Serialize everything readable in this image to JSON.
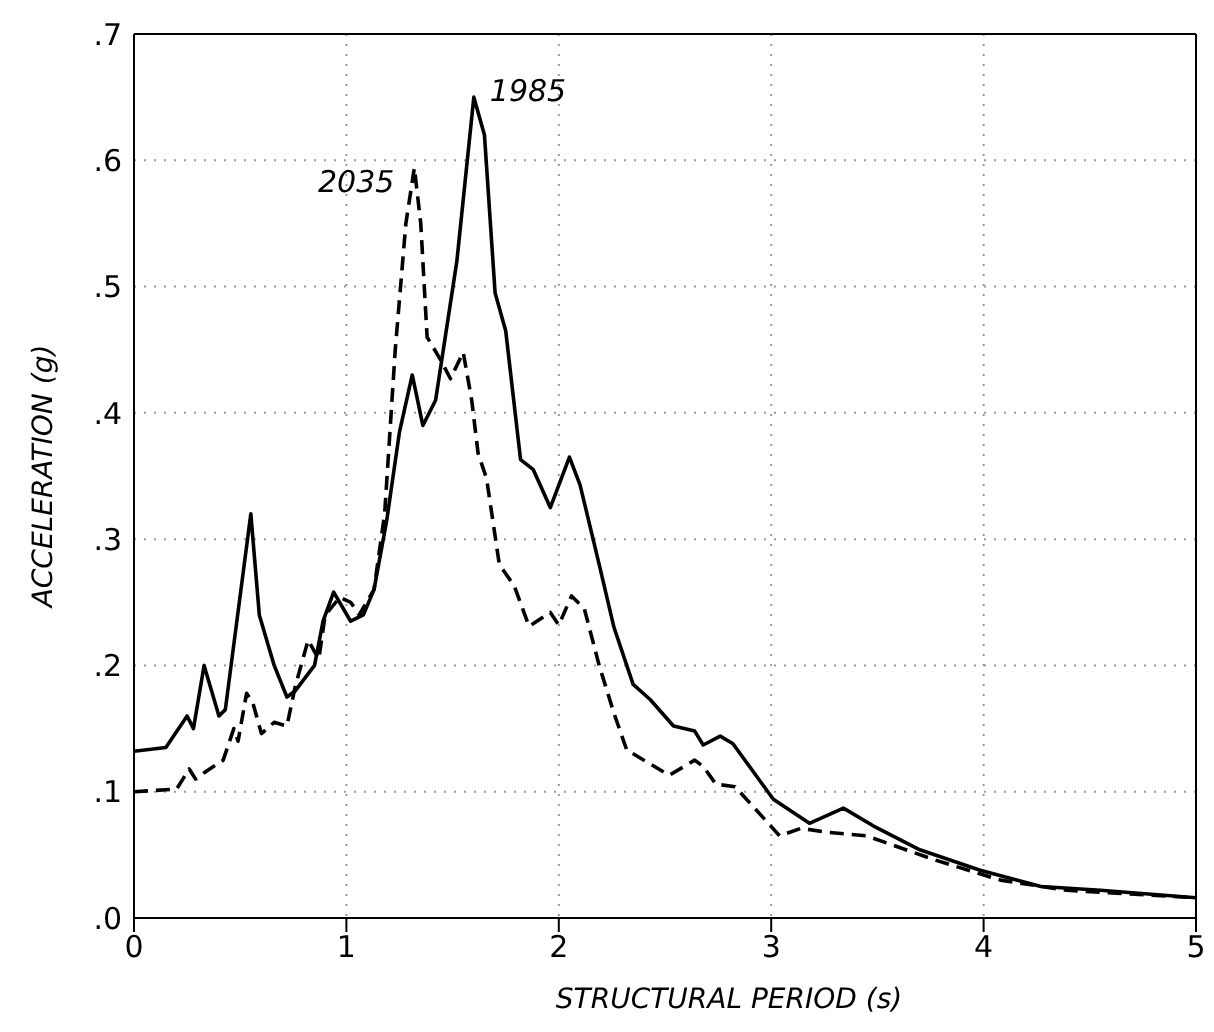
{
  "chart_data": {
    "type": "line",
    "xlabel": "STRUCTURAL PERIOD  (s)",
    "ylabel": "ACCELERATION  (g)",
    "xlim": [
      0,
      5
    ],
    "xticks": [
      0,
      1,
      2,
      3,
      4,
      5
    ],
    "ylim": [
      0,
      0.7
    ],
    "yticks": [
      {
        "value": 0,
        "label": ".0"
      },
      {
        "value": 0.1,
        "label": ".1"
      },
      {
        "value": 0.2,
        "label": ".2"
      },
      {
        "value": 0.3,
        "label": ".3"
      },
      {
        "value": 0.4,
        "label": ".4"
      },
      {
        "value": 0.5,
        "label": ".5"
      },
      {
        "value": 0.6,
        "label": ".6"
      },
      {
        "value": 0.7,
        "label": ".7"
      }
    ],
    "grid": true,
    "legend": false,
    "marker": "none",
    "series": [
      {
        "name": "1985",
        "color": "#000000",
        "line_style": "solid",
        "x": [
          0,
          0.15,
          0.25,
          0.28,
          0.33,
          0.4,
          0.43,
          0.55,
          0.59,
          0.66,
          0.72,
          0.76,
          0.85,
          0.89,
          0.94,
          1.02,
          1.08,
          1.13,
          1.19,
          1.25,
          1.31,
          1.36,
          1.42,
          1.52,
          1.6,
          1.65,
          1.7,
          1.75,
          1.82,
          1.88,
          1.96,
          2.05,
          2.1,
          2.19,
          2.26,
          2.35,
          2.43,
          2.54,
          2.64,
          2.68,
          2.76,
          2.82,
          3.01,
          3.18,
          3.34,
          3.48,
          3.7,
          3.98,
          4.27,
          4.55,
          5
        ],
        "values": [
          0.132,
          0.135,
          0.16,
          0.15,
          0.2,
          0.16,
          0.165,
          0.32,
          0.24,
          0.2,
          0.175,
          0.18,
          0.2,
          0.235,
          0.258,
          0.235,
          0.24,
          0.26,
          0.315,
          0.385,
          0.43,
          0.39,
          0.41,
          0.52,
          0.65,
          0.62,
          0.495,
          0.465,
          0.363,
          0.355,
          0.325,
          0.365,
          0.343,
          0.28,
          0.23,
          0.185,
          0.173,
          0.152,
          0.148,
          0.137,
          0.144,
          0.138,
          0.094,
          0.075,
          0.087,
          0.073,
          0.054,
          0.038,
          0.025,
          0.022,
          0.016
        ]
      },
      {
        "name": "2035",
        "color": "#000000",
        "line_style": "dashed",
        "x": [
          0,
          0.2,
          0.26,
          0.29,
          0.33,
          0.42,
          0.47,
          0.49,
          0.53,
          0.56,
          0.6,
          0.66,
          0.72,
          0.76,
          0.82,
          0.87,
          0.9,
          0.97,
          1.02,
          1.06,
          1.13,
          1.18,
          1.23,
          1.28,
          1.32,
          1.35,
          1.38,
          1.44,
          1.49,
          1.55,
          1.59,
          1.62,
          1.66,
          1.72,
          1.79,
          1.86,
          1.96,
          2.0,
          2.06,
          2.12,
          2.19,
          2.26,
          2.32,
          2.52,
          2.64,
          2.68,
          2.74,
          2.83,
          3.04,
          3.14,
          3.26,
          3.45,
          3.77,
          4.08,
          4.39,
          5
        ],
        "values": [
          0.1,
          0.102,
          0.118,
          0.11,
          0.115,
          0.125,
          0.15,
          0.14,
          0.178,
          0.17,
          0.146,
          0.155,
          0.152,
          0.184,
          0.22,
          0.205,
          0.24,
          0.254,
          0.25,
          0.24,
          0.26,
          0.32,
          0.45,
          0.55,
          0.594,
          0.55,
          0.46,
          0.443,
          0.427,
          0.448,
          0.41,
          0.368,
          0.348,
          0.28,
          0.263,
          0.231,
          0.242,
          0.232,
          0.255,
          0.245,
          0.2,
          0.162,
          0.133,
          0.113,
          0.125,
          0.12,
          0.106,
          0.104,
          0.065,
          0.071,
          0.068,
          0.065,
          0.046,
          0.03,
          0.022,
          0.016
        ]
      }
    ]
  }
}
